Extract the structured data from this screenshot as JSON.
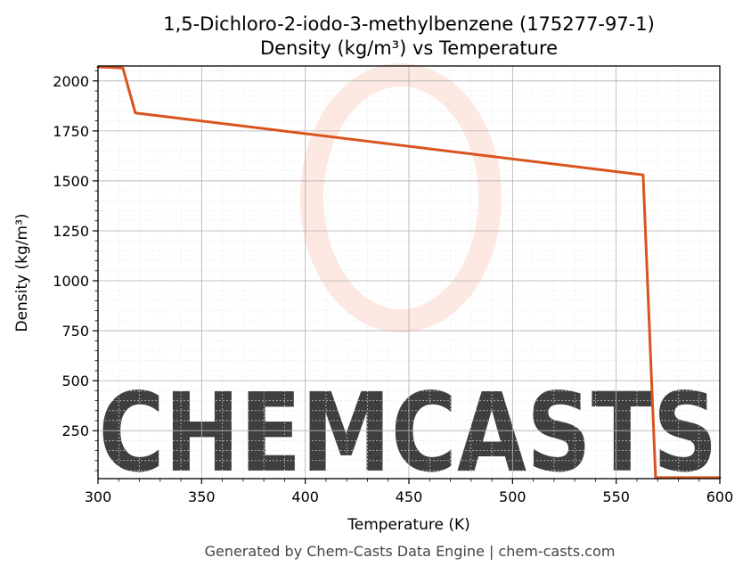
{
  "chart_data": {
    "type": "line",
    "title": "1,5-Dichloro-2-iodo-3-methylbenzene (175277-97-1)",
    "subtitle": "Density (kg/m³) vs Temperature",
    "xlabel": "Temperature (K)",
    "ylabel": "Density (kg/m³)",
    "xlim": [
      300,
      600
    ],
    "ylim": [
      10,
      2075
    ],
    "x_ticks": [
      300,
      350,
      400,
      450,
      500,
      550,
      600
    ],
    "y_ticks": [
      250,
      500,
      750,
      1000,
      1250,
      1500,
      1750,
      2000
    ],
    "grid": true,
    "minor_grid": true,
    "legend": "none",
    "series": [
      {
        "color": "#d9541e",
        "x": [
          300,
          312,
          318,
          563,
          569,
          600
        ],
        "y": [
          2070,
          2065,
          1840,
          1530,
          15,
          15
        ]
      }
    ]
  },
  "watermark": {
    "text": "CHEMCASTS",
    "color": "#fde0d8"
  },
  "footer": "Generated by Chem-Casts Data Engine | chem-casts.com"
}
